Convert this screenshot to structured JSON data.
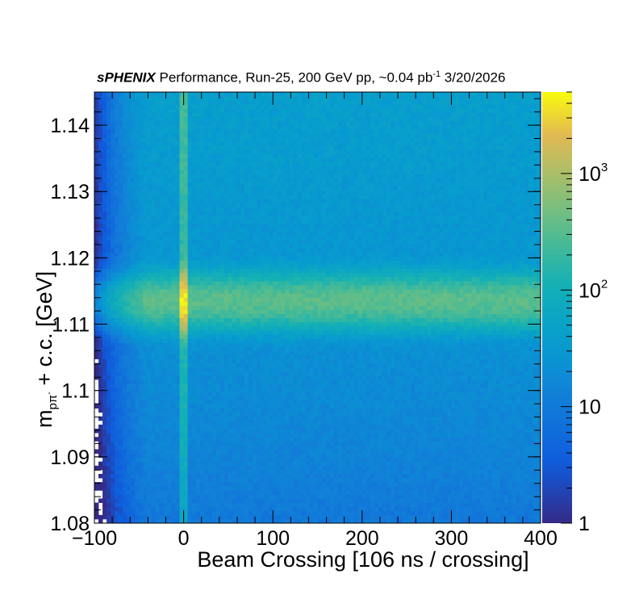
{
  "chart_data": {
    "type": "heatmap",
    "title": {
      "experiment": "sPHENIX",
      "rest": "Performance, Run-25, 200 GeV pp, ~0.04 pb",
      "lumi_sup": "-1",
      "date": "3/20/2026"
    },
    "xlabel": "Beam Crossing [106 ns / crossing]",
    "ylabel": {
      "main": "m",
      "sub": "pπ",
      "sub_sup": "-",
      "rest": " + c.c. [GeV]"
    },
    "xlim": [
      -100,
      400
    ],
    "ylim": [
      1.08,
      1.145
    ],
    "x_ticks": [
      "−100",
      "0",
      "100",
      "200",
      "300",
      "400"
    ],
    "x_tick_values": [
      -100,
      0,
      100,
      200,
      300,
      400
    ],
    "y_ticks": [
      "1.08",
      "1.09",
      "1.1",
      "1.11",
      "1.12",
      "1.13",
      "1.14"
    ],
    "y_tick_values": [
      1.08,
      1.09,
      1.1,
      1.11,
      1.12,
      1.13,
      1.14
    ],
    "z_scale": "log",
    "zlim": [
      1,
      5000
    ],
    "colorbar_ticks": [
      {
        "value": 1,
        "label": "1"
      },
      {
        "value": 10,
        "label": "10"
      },
      {
        "value": 100,
        "label": "10",
        "sup": "2"
      },
      {
        "value": 1000,
        "label": "10",
        "sup": "3"
      }
    ],
    "grid": false,
    "features": {
      "signal_peak_mass": 1.1135,
      "signal_peak_width": 0.0022,
      "triggered_crossing": 0,
      "background_level": 20,
      "peak_level": 320,
      "triggered_crossing_peak_level": 4000
    },
    "colors": {
      "low": "#352a87",
      "mid": "#57b5c9",
      "high": "#f9fb0e"
    }
  }
}
